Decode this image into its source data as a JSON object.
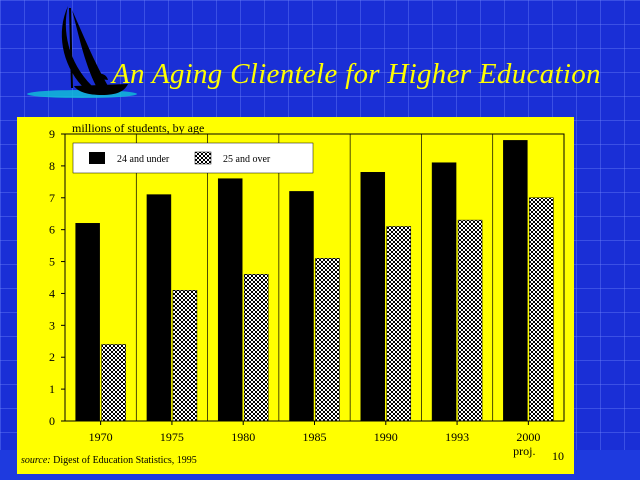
{
  "slide": {
    "title": "An Aging Clientele for Higher Education",
    "source_prefix": "source:",
    "source_text": " Digest of Education Statistics, 1995",
    "page_number": "10",
    "colors": {
      "background": "#1a2fd6",
      "title": "#ffff00",
      "panel": "#ffff00"
    }
  },
  "chart_data": {
    "type": "bar",
    "title": "millions of students, by age",
    "xlabel": "",
    "ylabel": "",
    "categories": [
      "1970",
      "1975",
      "1980",
      "1985",
      "1990",
      "1993",
      "2000\nproj."
    ],
    "series": [
      {
        "name": "24 and under",
        "fill": "solid-black",
        "values": [
          6.2,
          7.1,
          7.6,
          7.2,
          7.8,
          8.1,
          8.8
        ]
      },
      {
        "name": "25 and over",
        "fill": "checkered",
        "values": [
          2.4,
          4.1,
          4.6,
          5.1,
          6.1,
          6.3,
          7.0
        ]
      }
    ],
    "ylim": [
      0,
      9
    ],
    "yticks": [
      0,
      1,
      2,
      3,
      4,
      5,
      6,
      7,
      8,
      9
    ],
    "grid": "vertical separators",
    "legend": "top-left"
  }
}
